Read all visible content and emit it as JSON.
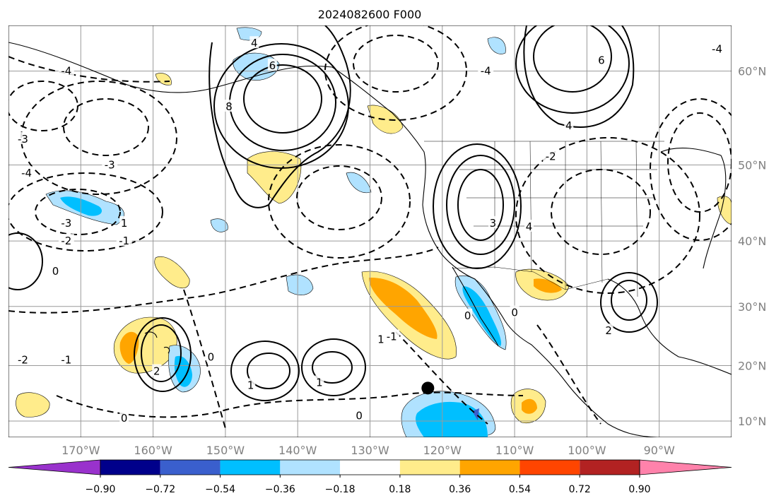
{
  "title": "2024082600 F000",
  "map": {
    "lon_range": [
      -180,
      -80
    ],
    "lat_range": [
      7,
      64
    ],
    "gridlines": true,
    "lon_ticks": [
      {
        "lon": -170,
        "label": "170°W"
      },
      {
        "lon": -160,
        "label": "160°W"
      },
      {
        "lon": -150,
        "label": "150°W"
      },
      {
        "lon": -140,
        "label": "140°W"
      },
      {
        "lon": -130,
        "label": "130°W"
      },
      {
        "lon": -120,
        "label": "120°W"
      },
      {
        "lon": -110,
        "label": "110°W"
      },
      {
        "lon": -100,
        "label": "100°W"
      },
      {
        "lon": -90,
        "label": "90°W"
      }
    ],
    "lat_ticks": [
      {
        "lat": 60,
        "label": "60°N"
      },
      {
        "lat": 50,
        "label": "50°N"
      },
      {
        "lat": 40,
        "label": "40°N"
      },
      {
        "lat": 30,
        "label": "30°N"
      },
      {
        "lat": 20,
        "label": "20°N"
      },
      {
        "lat": 10,
        "label": "10°N"
      }
    ],
    "marker": {
      "lon": -122,
      "lat": 16
    },
    "contour_labels": [
      {
        "text": "4",
        "lon": -146,
        "lat": 62.5
      },
      {
        "text": "6",
        "lon": -143.5,
        "lat": 60.5
      },
      {
        "text": "8",
        "lon": -149.5,
        "lat": 56.5
      },
      {
        "text": "6",
        "lon": -98,
        "lat": 61
      },
      {
        "text": "4",
        "lon": -102.5,
        "lat": 54.5
      },
      {
        "text": "3",
        "lon": -113,
        "lat": 42.5
      },
      {
        "text": "4",
        "lon": -108,
        "lat": 42
      },
      {
        "text": "2",
        "lon": -97,
        "lat": 26
      },
      {
        "text": "2",
        "lon": -159.5,
        "lat": 19
      },
      {
        "text": "1",
        "lon": -146.5,
        "lat": 16.5
      },
      {
        "text": "1",
        "lon": -137,
        "lat": 17
      },
      {
        "text": "0",
        "lon": -131.5,
        "lat": 11
      },
      {
        "text": "0",
        "lon": -164,
        "lat": 10.5
      },
      {
        "text": "0",
        "lon": -173.5,
        "lat": 35.5
      },
      {
        "text": "0",
        "lon": -116.5,
        "lat": 28.5
      },
      {
        "text": "1",
        "lon": -128.5,
        "lat": 24.5
      },
      {
        "text": "0",
        "lon": -110,
        "lat": 29
      },
      {
        "text": "0",
        "lon": -152,
        "lat": 21.5
      },
      {
        "text": "1",
        "lon": -164,
        "lat": 42.5
      },
      {
        "text": "-1",
        "lon": -172,
        "lat": 21
      },
      {
        "text": "-1",
        "lon": -164,
        "lat": 40
      },
      {
        "text": "-1",
        "lon": -127,
        "lat": 25
      },
      {
        "text": "-2",
        "lon": -172,
        "lat": 40
      },
      {
        "text": "-3",
        "lon": -172,
        "lat": 42.5
      },
      {
        "text": "-3",
        "lon": -166,
        "lat": 50
      },
      {
        "text": "-3",
        "lon": -178,
        "lat": 53
      },
      {
        "text": "-4",
        "lon": -177.5,
        "lat": 49
      },
      {
        "text": "-4",
        "lon": -172,
        "lat": 60
      },
      {
        "text": "-4",
        "lon": -114,
        "lat": 60
      },
      {
        "text": "-4",
        "lon": -82,
        "lat": 62
      },
      {
        "text": "-2",
        "lon": -105,
        "lat": 51
      },
      {
        "text": "-2",
        "lon": -178,
        "lat": 21
      }
    ]
  },
  "colorbar": {
    "colors": [
      "#9932cc",
      "#00008b",
      "#3a5fcd",
      "#00bfff",
      "#b0e2ff",
      "#ffffff",
      "#ffec8b",
      "#ffa500",
      "#ff4500",
      "#b22222",
      "#ff82ab"
    ],
    "tick_labels": [
      "−0.90",
      "−0.72",
      "−0.54",
      "−0.36",
      "−0.18",
      "0.18",
      "0.36",
      "0.54",
      "0.72",
      "0.90"
    ]
  }
}
